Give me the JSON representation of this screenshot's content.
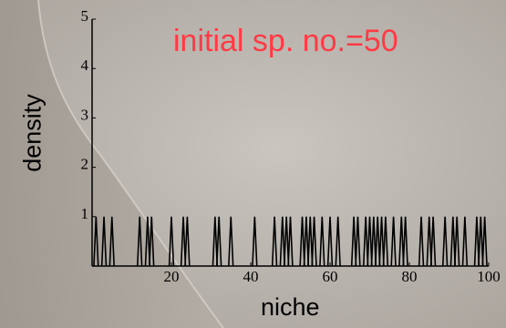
{
  "chart_data": {
    "type": "line",
    "title": "initial sp. no.=50",
    "xlabel": "niche",
    "ylabel": "density",
    "xlim": [
      0,
      100
    ],
    "ylim": [
      0,
      5
    ],
    "x_ticks": [
      20,
      40,
      60,
      80,
      100
    ],
    "y_ticks": [
      1,
      2,
      3,
      4,
      5
    ],
    "peak_height": 1,
    "peak_half_width": 0.55,
    "peak_positions": [
      1,
      3,
      5,
      12,
      14,
      15,
      20,
      23,
      24,
      31,
      32,
      35,
      41,
      46,
      48,
      49,
      50,
      53,
      54,
      55,
      56,
      58,
      60,
      62,
      66,
      67,
      69,
      70,
      71,
      72,
      73,
      74,
      76,
      78,
      79,
      83,
      85,
      86,
      89,
      91,
      92,
      94,
      97,
      98,
      99
    ],
    "grid": false,
    "legend": "none"
  },
  "colors": {
    "title": "#ff3a45",
    "line": "#000000",
    "background": "#b9b4ad"
  }
}
